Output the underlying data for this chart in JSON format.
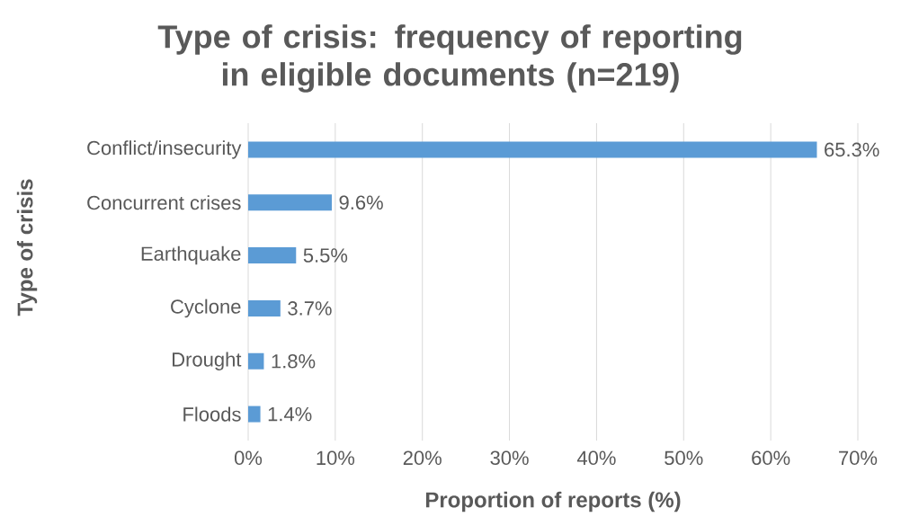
{
  "chart_data": {
    "type": "bar",
    "orientation": "horizontal",
    "title": "Type of crisis: frequency of reporting in eligible documents (n=219)",
    "xlabel": "Proportion of reports (%)",
    "ylabel": "Type of crisis",
    "categories": [
      "Conflict/insecurity",
      "Concurrent crises",
      "Earthquake",
      "Cyclone",
      "Drought",
      "Floods"
    ],
    "values": [
      65.3,
      9.6,
      5.5,
      3.7,
      1.8,
      1.4
    ],
    "value_labels": [
      "65.3%",
      "9.6%",
      "5.5%",
      "3.7%",
      "1.8%",
      "1.4%"
    ],
    "color": "#5b9bd5",
    "xlim": [
      0,
      70
    ],
    "xticks": [
      {
        "value": 0,
        "label": "0%"
      },
      {
        "value": 10,
        "label": "10%"
      },
      {
        "value": 20,
        "label": "20%"
      },
      {
        "value": 30,
        "label": "30%"
      },
      {
        "value": 40,
        "label": "40%"
      },
      {
        "value": 50,
        "label": "50%"
      },
      {
        "value": 60,
        "label": "60%"
      },
      {
        "value": 70,
        "label": "70%"
      }
    ],
    "grid": "x"
  }
}
